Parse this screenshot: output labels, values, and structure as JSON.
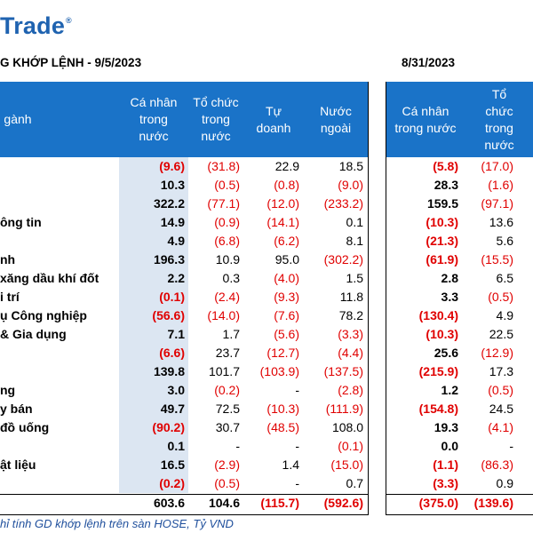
{
  "logo": {
    "text": "Trade",
    "reg": "®"
  },
  "table1_title": "G KHỚP LỆNH - 9/5/2023",
  "table2_title": "8/31/2023",
  "headers_left": [
    "gành",
    "Cá nhân\ntrong\nnước",
    "Tổ chức\ntrong\nnước",
    "Tự\ndoanh",
    "Nước\nngoài"
  ],
  "headers_right": [
    "Cá nhân\ntrong nước",
    "Tổ\nchức\ntrong\nnước"
  ],
  "rows": [
    {
      "sector": "",
      "v": [
        "(9.6)",
        "(31.8)",
        "22.9",
        "18.5",
        "(5.8)",
        "(17.0)"
      ]
    },
    {
      "sector": "",
      "v": [
        "10.3",
        "(0.5)",
        "(0.8)",
        "(9.0)",
        "28.3",
        "(1.6)"
      ]
    },
    {
      "sector": "",
      "v": [
        "322.2",
        "(77.1)",
        "(12.0)",
        "(233.2)",
        "159.5",
        "(97.1)"
      ]
    },
    {
      "sector": "ông tin",
      "v": [
        "14.9",
        "(0.9)",
        "(14.1)",
        "0.1",
        "(10.3)",
        "13.6"
      ]
    },
    {
      "sector": "",
      "v": [
        "4.9",
        "(6.8)",
        "(6.2)",
        "8.1",
        "(21.3)",
        "5.6"
      ]
    },
    {
      "sector": "nh",
      "v": [
        "196.3",
        "10.9",
        "95.0",
        "(302.2)",
        "(61.9)",
        "(15.5)"
      ]
    },
    {
      "sector": "xăng dầu khí đốt",
      "v": [
        "2.2",
        "0.3",
        "(4.0)",
        "1.5",
        "2.8",
        "6.5"
      ]
    },
    {
      "sector": "i trí",
      "v": [
        "(0.1)",
        "(2.4)",
        "(9.3)",
        "11.8",
        "3.3",
        "(0.5)"
      ]
    },
    {
      "sector": "ụ Công nghiệp",
      "v": [
        "(56.6)",
        "(14.0)",
        "(7.6)",
        "78.2",
        "(130.4)",
        "4.9"
      ]
    },
    {
      "sector": "& Gia dụng",
      "v": [
        "7.1",
        "1.7",
        "(5.6)",
        "(3.3)",
        "(10.3)",
        "22.5"
      ]
    },
    {
      "sector": "",
      "v": [
        "(6.6)",
        "23.7",
        "(12.7)",
        "(4.4)",
        "25.6",
        "(12.9)"
      ]
    },
    {
      "sector": "",
      "v": [
        "139.8",
        "101.7",
        "(103.9)",
        "(137.5)",
        "(215.9)",
        "17.3"
      ]
    },
    {
      "sector": "ng",
      "v": [
        "3.0",
        "(0.2)",
        "-",
        "(2.8)",
        "1.2",
        "(0.5)"
      ]
    },
    {
      "sector": "y bán",
      "v": [
        "49.7",
        "72.5",
        "(10.3)",
        "(111.9)",
        "(154.8)",
        "24.5"
      ]
    },
    {
      "sector": "đồ uống",
      "v": [
        "(90.2)",
        "30.7",
        "(48.5)",
        "108.0",
        "19.3",
        "(4.1)"
      ]
    },
    {
      "sector": "",
      "v": [
        "0.1",
        "-",
        "-",
        "(0.1)",
        "0.0",
        "-"
      ]
    },
    {
      "sector": "ật liệu",
      "v": [
        "16.5",
        "(2.9)",
        "1.4",
        "(15.0)",
        "(1.1)",
        "(86.3)"
      ]
    },
    {
      "sector": "",
      "v": [
        "(0.2)",
        "(0.5)",
        "-",
        "0.7",
        "(3.3)",
        "0.9"
      ]
    }
  ],
  "total": {
    "v": [
      "603.6",
      "104.6",
      "(115.7)",
      "(592.6)",
      "(375.0)",
      "(139.6)"
    ]
  },
  "note": "hỉ tính GD khớp lệnh trên sàn HOSE, Tỷ VND",
  "colors": {
    "header_bg": "#1a73c8",
    "shade": "#dce6f2",
    "negative": "#e00000",
    "brand": "#1f63b0"
  }
}
